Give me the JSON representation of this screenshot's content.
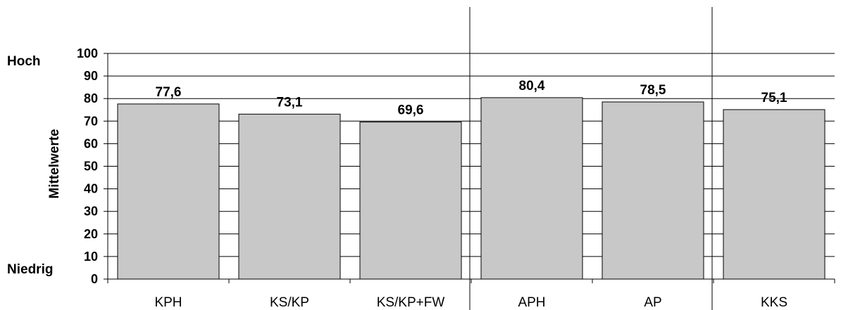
{
  "chart_data": {
    "type": "bar",
    "categories": [
      "KPH",
      "KS/KP",
      "KS/KP+FW",
      "APH",
      "AP",
      "KKS"
    ],
    "values": [
      77.6,
      73.1,
      69.6,
      80.4,
      78.5,
      75.1
    ],
    "value_labels": [
      "77,6",
      "73,1",
      "69,6",
      "80,4",
      "78,5",
      "75,1"
    ],
    "title": "",
    "xlabel": "",
    "ylabel": "Mittelwerte",
    "ylim": [
      0,
      100
    ],
    "yticks": [
      0,
      10,
      20,
      30,
      40,
      50,
      60,
      70,
      80,
      90,
      100
    ],
    "scale_high_label": "Hoch",
    "scale_low_label": "Niedrig",
    "group_separators_after": [
      2,
      4
    ],
    "grid": true,
    "legend": "none",
    "bar_color": "#c8c8c8"
  }
}
